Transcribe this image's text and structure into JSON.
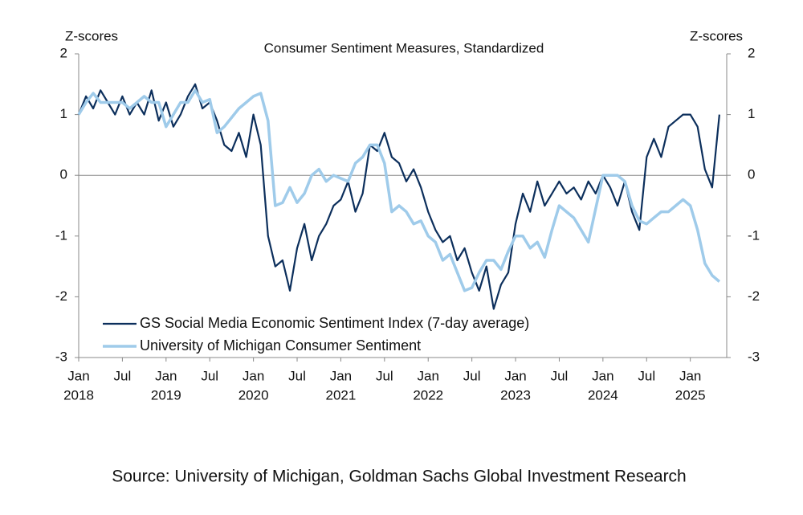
{
  "chart_data": {
    "type": "line",
    "title": "Consumer Sentiment Measures, Standardized",
    "y_label": "Z-scores",
    "y2_label": "Z-scores",
    "source": "Source: University of Michigan, Goldman Sachs Global Investment Research",
    "xlim": [
      "2018-01",
      "2025-06"
    ],
    "xticks": [
      {
        "value": "2018-01",
        "label": "Jan"
      },
      {
        "value": "2018-07",
        "label": "Jul"
      },
      {
        "value": "2019-01",
        "label": "Jan"
      },
      {
        "value": "2019-07",
        "label": "Jul"
      },
      {
        "value": "2020-01",
        "label": "Jan"
      },
      {
        "value": "2020-07",
        "label": "Jul"
      },
      {
        "value": "2021-01",
        "label": "Jan"
      },
      {
        "value": "2021-07",
        "label": "Jul"
      },
      {
        "value": "2022-01",
        "label": "Jan"
      },
      {
        "value": "2022-07",
        "label": "Jul"
      },
      {
        "value": "2023-01",
        "label": "Jan"
      },
      {
        "value": "2023-07",
        "label": "Jul"
      },
      {
        "value": "2024-01",
        "label": "Jan"
      },
      {
        "value": "2024-07",
        "label": "Jul"
      },
      {
        "value": "2025-01",
        "label": "Jan"
      }
    ],
    "x_year_labels": [
      {
        "value": "2018-01",
        "label": "2018"
      },
      {
        "value": "2019-01",
        "label": "2019"
      },
      {
        "value": "2020-01",
        "label": "2020"
      },
      {
        "value": "2021-01",
        "label": "2021"
      },
      {
        "value": "2022-01",
        "label": "2022"
      },
      {
        "value": "2023-01",
        "label": "2023"
      },
      {
        "value": "2024-01",
        "label": "2024"
      },
      {
        "value": "2025-01",
        "label": "2025"
      }
    ],
    "ylim": [
      -3,
      2
    ],
    "yticks": [
      -3,
      -2,
      -1,
      0,
      1,
      2
    ],
    "y2lim": [
      -3,
      2
    ],
    "y2ticks": [
      -3,
      -2,
      -1,
      0,
      1,
      2
    ],
    "legend": "lower-left",
    "x": [
      "2018-01",
      "2018-02",
      "2018-03",
      "2018-04",
      "2018-05",
      "2018-06",
      "2018-07",
      "2018-08",
      "2018-09",
      "2018-10",
      "2018-11",
      "2018-12",
      "2019-01",
      "2019-02",
      "2019-03",
      "2019-04",
      "2019-05",
      "2019-06",
      "2019-07",
      "2019-08",
      "2019-09",
      "2019-10",
      "2019-11",
      "2019-12",
      "2020-01",
      "2020-02",
      "2020-03",
      "2020-04",
      "2020-05",
      "2020-06",
      "2020-07",
      "2020-08",
      "2020-09",
      "2020-10",
      "2020-11",
      "2020-12",
      "2021-01",
      "2021-02",
      "2021-03",
      "2021-04",
      "2021-05",
      "2021-06",
      "2021-07",
      "2021-08",
      "2021-09",
      "2021-10",
      "2021-11",
      "2021-12",
      "2022-01",
      "2022-02",
      "2022-03",
      "2022-04",
      "2022-05",
      "2022-06",
      "2022-07",
      "2022-08",
      "2022-09",
      "2022-10",
      "2022-11",
      "2022-12",
      "2023-01",
      "2023-02",
      "2023-03",
      "2023-04",
      "2023-05",
      "2023-06",
      "2023-07",
      "2023-08",
      "2023-09",
      "2023-10",
      "2023-11",
      "2023-12",
      "2024-01",
      "2024-02",
      "2024-03",
      "2024-04",
      "2024-05",
      "2024-06",
      "2024-07",
      "2024-08",
      "2024-09",
      "2024-10",
      "2024-11",
      "2024-12",
      "2025-01",
      "2025-02",
      "2025-03",
      "2025-04",
      "2025-05"
    ],
    "series": [
      {
        "name": "GS Social Media Economic Sentiment Index (7-day average)",
        "color": "#0c2f5c",
        "width": 2.2,
        "values": [
          1.0,
          1.3,
          1.1,
          1.4,
          1.2,
          1.0,
          1.3,
          1.0,
          1.2,
          1.0,
          1.4,
          0.9,
          1.2,
          0.8,
          1.0,
          1.3,
          1.5,
          1.1,
          1.2,
          0.9,
          0.5,
          0.4,
          0.7,
          0.3,
          1.0,
          0.5,
          -1.0,
          -1.5,
          -1.4,
          -1.9,
          -1.2,
          -0.8,
          -1.4,
          -1.0,
          -0.8,
          -0.5,
          -0.4,
          -0.1,
          -0.6,
          -0.3,
          0.5,
          0.4,
          0.7,
          0.3,
          0.2,
          -0.1,
          0.1,
          -0.2,
          -0.6,
          -0.9,
          -1.1,
          -1.0,
          -1.4,
          -1.2,
          -1.6,
          -1.9,
          -1.5,
          -2.2,
          -1.8,
          -1.6,
          -0.8,
          -0.3,
          -0.6,
          -0.1,
          -0.5,
          -0.3,
          -0.1,
          -0.3,
          -0.2,
          -0.4,
          -0.1,
          -0.3,
          0.0,
          -0.2,
          -0.5,
          -0.1,
          -0.6,
          -0.9,
          0.3,
          0.6,
          0.3,
          0.8,
          0.9,
          1.0,
          1.0,
          0.8,
          0.1,
          -0.2,
          1.0
        ]
      },
      {
        "name": "University of Michigan Consumer Sentiment",
        "color": "#9fcbea",
        "width": 3.5,
        "values": [
          1.0,
          1.2,
          1.35,
          1.2,
          1.2,
          1.2,
          1.2,
          1.1,
          1.2,
          1.3,
          1.2,
          1.2,
          0.8,
          1.0,
          1.2,
          1.2,
          1.4,
          1.2,
          1.25,
          0.7,
          0.8,
          0.95,
          1.1,
          1.2,
          1.3,
          1.35,
          0.9,
          -0.5,
          -0.45,
          -0.2,
          -0.45,
          -0.3,
          0.0,
          0.1,
          -0.1,
          0.0,
          -0.05,
          -0.1,
          0.2,
          0.3,
          0.5,
          0.5,
          0.2,
          -0.6,
          -0.5,
          -0.6,
          -0.8,
          -0.75,
          -1.0,
          -1.1,
          -1.4,
          -1.3,
          -1.6,
          -1.9,
          -1.85,
          -1.6,
          -1.4,
          -1.4,
          -1.55,
          -1.25,
          -1.0,
          -1.0,
          -1.2,
          -1.1,
          -1.35,
          -0.9,
          -0.5,
          -0.6,
          -0.7,
          -0.9,
          -1.1,
          -0.55,
          0.0,
          0.0,
          0.0,
          -0.1,
          -0.5,
          -0.75,
          -0.8,
          -0.7,
          -0.6,
          -0.6,
          -0.5,
          -0.4,
          -0.5,
          -0.9,
          -1.45,
          -1.65,
          -1.75
        ]
      }
    ]
  }
}
